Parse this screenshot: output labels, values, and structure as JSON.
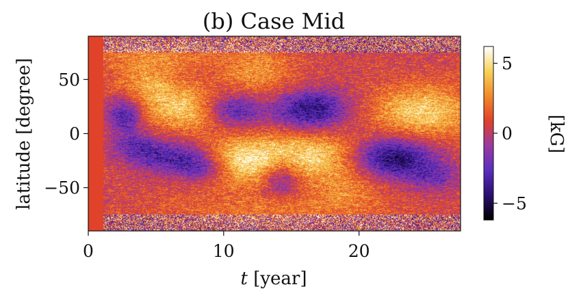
{
  "chart_data": {
    "type": "heatmap",
    "title": "(b) Case Mid",
    "xlabel_var": "t",
    "xlabel_unit": " [year]",
    "ylabel": "latitude [degree]",
    "xlim": [
      0,
      27.5
    ],
    "ylim": [
      -90,
      90
    ],
    "xticks": [
      0,
      10,
      20
    ],
    "yticks": [
      50,
      0,
      -50
    ],
    "ytick_labels": [
      "50",
      "0",
      "−50"
    ],
    "colorbar": {
      "label": "[kG]",
      "range": [
        -6.2,
        6.2
      ],
      "ticks": [
        5,
        0,
        -5
      ],
      "tick_labels": [
        "5",
        "0",
        "−5"
      ],
      "colormap": [
        "#000000",
        "#2a0f70",
        "#5a2ec0",
        "#9b3aa0",
        "#e0412a",
        "#f2892a",
        "#f6d25a",
        "#ffffff"
      ]
    },
    "background_value_kG": 0.6,
    "initial_uniform_until_year": 1.1,
    "features": [
      {
        "t": 2.7,
        "lat": 18,
        "value": -4.2,
        "dt": 0.9,
        "dlat": 12
      },
      {
        "t": 3.5,
        "lat": -12,
        "value": -2.5,
        "dt": 1.3,
        "dlat": 10
      },
      {
        "t": 4.5,
        "lat": 45,
        "value": 2.6,
        "dt": 1.8,
        "dlat": 18
      },
      {
        "t": 7.8,
        "lat": 22,
        "value": 4.0,
        "dt": 2.2,
        "dlat": 14
      },
      {
        "t": 6.5,
        "lat": -22,
        "value": -3.8,
        "dt": 2.0,
        "dlat": 11
      },
      {
        "t": 8.6,
        "lat": -32,
        "value": -3.0,
        "dt": 1.3,
        "dlat": 9
      },
      {
        "t": 10.5,
        "lat": 22,
        "value": -4.6,
        "dt": 1.7,
        "dlat": 12
      },
      {
        "t": 11.5,
        "lat": -25,
        "value": 4.6,
        "dt": 2.5,
        "dlat": 16
      },
      {
        "t": 12.5,
        "lat": 55,
        "value": 2.2,
        "dt": 2.0,
        "dlat": 16
      },
      {
        "t": 14.2,
        "lat": -40,
        "value": -3.4,
        "dt": 1.0,
        "dlat": 12
      },
      {
        "t": 16.5,
        "lat": 22,
        "value": -4.8,
        "dt": 1.9,
        "dlat": 13
      },
      {
        "t": 16.8,
        "lat": -20,
        "value": 3.6,
        "dt": 2.4,
        "dlat": 15
      },
      {
        "t": 19.0,
        "lat": -50,
        "value": 1.8,
        "dt": 2.0,
        "dlat": 14
      },
      {
        "t": 22.5,
        "lat": -22,
        "value": -5.3,
        "dt": 2.1,
        "dlat": 13
      },
      {
        "t": 24.7,
        "lat": 20,
        "value": 4.0,
        "dt": 2.6,
        "dlat": 17
      },
      {
        "t": 25.5,
        "lat": -40,
        "value": -2.2,
        "dt": 1.5,
        "dlat": 10
      },
      {
        "t": 13.5,
        "lat": -70,
        "value": 1.5,
        "dt": 6.0,
        "dlat": 10
      },
      {
        "t": 5.0,
        "lat": 72,
        "value": 1.4,
        "dt": 5.0,
        "dlat": 8
      }
    ],
    "polar_noise": {
      "lat_above": 75,
      "amplitude_kG": 4.5
    }
  }
}
